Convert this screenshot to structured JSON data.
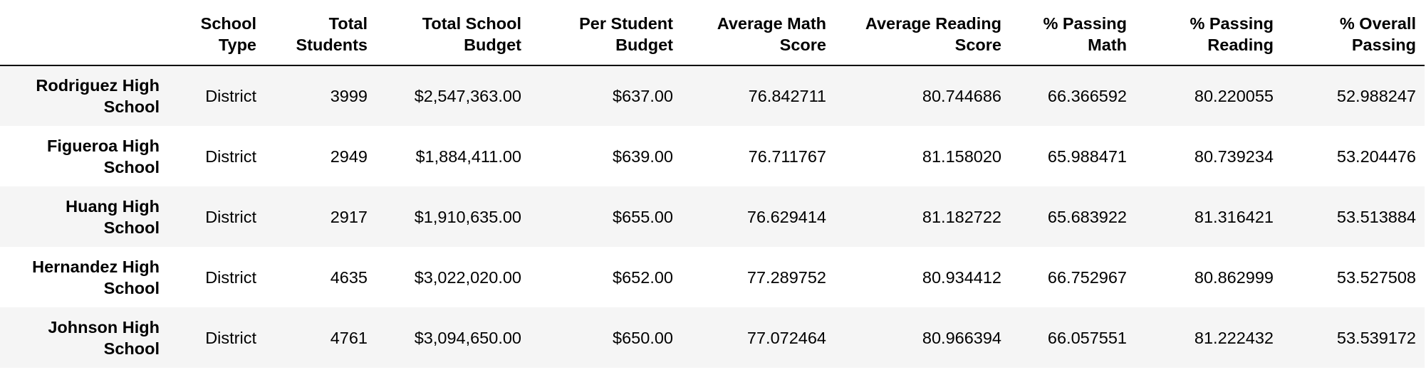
{
  "table": {
    "columns": [
      "",
      "School Type",
      "Total Students",
      "Total School Budget",
      "Per Student Budget",
      "Average Math Score",
      "Average Reading Score",
      "% Passing Math",
      "% Passing Reading",
      "% Overall Passing"
    ],
    "rows": [
      {
        "index": "Rodriguez High School",
        "cells": [
          "District",
          "3999",
          "$2,547,363.00",
          "$637.00",
          "76.842711",
          "80.744686",
          "66.366592",
          "80.220055",
          "52.988247"
        ]
      },
      {
        "index": "Figueroa High School",
        "cells": [
          "District",
          "2949",
          "$1,884,411.00",
          "$639.00",
          "76.711767",
          "81.158020",
          "65.988471",
          "80.739234",
          "53.204476"
        ]
      },
      {
        "index": "Huang High School",
        "cells": [
          "District",
          "2917",
          "$1,910,635.00",
          "$655.00",
          "76.629414",
          "81.182722",
          "65.683922",
          "81.316421",
          "53.513884"
        ]
      },
      {
        "index": "Hernandez High School",
        "cells": [
          "District",
          "4635",
          "$3,022,020.00",
          "$652.00",
          "77.289752",
          "80.934412",
          "66.752967",
          "80.862999",
          "53.527508"
        ]
      },
      {
        "index": "Johnson High School",
        "cells": [
          "District",
          "4761",
          "$3,094,650.00",
          "$650.00",
          "77.072464",
          "80.966394",
          "66.057551",
          "81.222432",
          "53.539172"
        ]
      }
    ]
  }
}
